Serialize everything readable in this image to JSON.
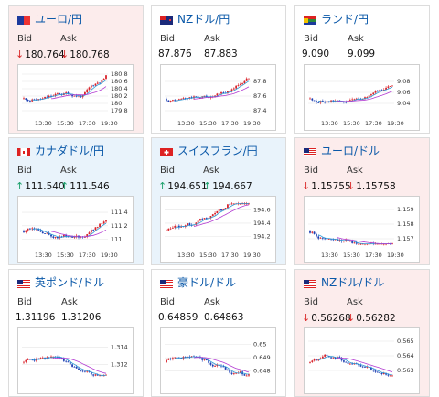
{
  "colors": {
    "up_arrow": "#1aa06b",
    "down_arrow": "#d92a2a",
    "title_link": "#0a58a8",
    "candle_up": "#d9232b",
    "candle_down": "#1c3fb4",
    "ma_short": "#2e9bd6",
    "ma_long": "#b23ad1"
  },
  "cards": [
    {
      "pair": "ユーロ/円",
      "flag_icon": "eu-flag-icon",
      "trend": "down",
      "bid_label": "Bid",
      "ask_label": "Ask",
      "bid": "180.764",
      "ask": "180.768",
      "chart": {
        "x_ticks": [
          "13:30",
          "15:30",
          "17:30",
          "19:30"
        ],
        "y_ticks": [
          "180.8",
          "180.6",
          "180.4",
          "180.2",
          "180",
          "179.8"
        ],
        "y_range": [
          179.7,
          180.9
        ]
      }
    },
    {
      "pair": "NZドル/円",
      "flag_icon": "nz-flag-icon",
      "trend": "flat",
      "bid_label": "Bid",
      "ask_label": "Ask",
      "bid": "87.876",
      "ask": "87.883",
      "chart": {
        "x_ticks": [
          "13:30",
          "15:30",
          "17:30",
          "19:30"
        ],
        "y_ticks": [
          "87.8",
          "87.6",
          "87.4"
        ],
        "y_range": [
          87.35,
          87.95
        ]
      }
    },
    {
      "pair": "ランド/円",
      "flag_icon": "za-flag-icon",
      "trend": "flat",
      "bid_label": "Bid",
      "ask_label": "Ask",
      "bid": "9.090",
      "ask": "9.099",
      "chart": {
        "x_ticks": [
          "13:30",
          "15:30",
          "17:30",
          "19:30"
        ],
        "y_ticks": [
          "9.08",
          "9.06",
          "9.04"
        ],
        "y_range": [
          9.02,
          9.1
        ]
      }
    },
    {
      "pair": "カナダドル/円",
      "flag_icon": "ca-flag-icon",
      "trend": "up",
      "bid_label": "Bid",
      "ask_label": "Ask",
      "bid": "111.540",
      "ask": "111.546",
      "chart": {
        "x_ticks": [
          "13:30",
          "15:30",
          "17:30",
          "19:30"
        ],
        "y_ticks": [
          "111.4",
          "111.2",
          "111"
        ],
        "y_range": [
          110.9,
          111.55
        ]
      }
    },
    {
      "pair": "スイスフラン/円",
      "flag_icon": "ch-flag-icon",
      "trend": "up",
      "bid_label": "Bid",
      "ask_label": "Ask",
      "bid": "194.651",
      "ask": "194.667",
      "chart": {
        "x_ticks": [
          "13:30",
          "15:30",
          "17:30",
          "19:30"
        ],
        "y_ticks": [
          "194.6",
          "194.4",
          "194.2"
        ],
        "y_range": [
          194.05,
          194.72
        ]
      }
    },
    {
      "pair": "ユーロ/ドル",
      "flag_icon": "eu-us-flag-icon",
      "trend": "down",
      "bid_label": "Bid",
      "ask_label": "Ask",
      "bid": "1.15755",
      "ask": "1.15758",
      "chart": {
        "x_ticks": [
          "13:30",
          "15:30",
          "17:30",
          "19:30"
        ],
        "y_ticks": [
          "1.159",
          "1.158",
          "1.157"
        ],
        "y_range": [
          1.1565,
          1.1595
        ]
      }
    },
    {
      "pair": "英ポンド/ドル",
      "flag_icon": "uk-us-flag-icon",
      "trend": "flat",
      "bid_label": "Bid",
      "ask_label": "Ask",
      "bid": "1.31196",
      "ask": "1.31206",
      "chart": {
        "x_ticks": [],
        "y_ticks": [
          "1.314",
          "1.312"
        ],
        "y_range": [
          1.3105,
          1.3155
        ]
      }
    },
    {
      "pair": "豪ドル/ドル",
      "flag_icon": "au-us-flag-icon",
      "trend": "flat",
      "bid_label": "Bid",
      "ask_label": "Ask",
      "bid": "0.64859",
      "ask": "0.64863",
      "chart": {
        "x_ticks": [],
        "y_ticks": [
          "0.65",
          "0.649",
          "0.648"
        ],
        "y_range": [
          0.6475,
          0.6508
        ]
      }
    },
    {
      "pair": "NZドル/ドル",
      "flag_icon": "nz-us-flag-icon",
      "trend": "down",
      "bid_label": "Bid",
      "ask_label": "Ask",
      "bid": "0.56268",
      "ask": "0.56282",
      "chart": {
        "x_ticks": [],
        "y_ticks": [
          "0.565",
          "0.564",
          "0.563"
        ],
        "y_range": [
          0.5625,
          0.5655
        ]
      }
    }
  ]
}
